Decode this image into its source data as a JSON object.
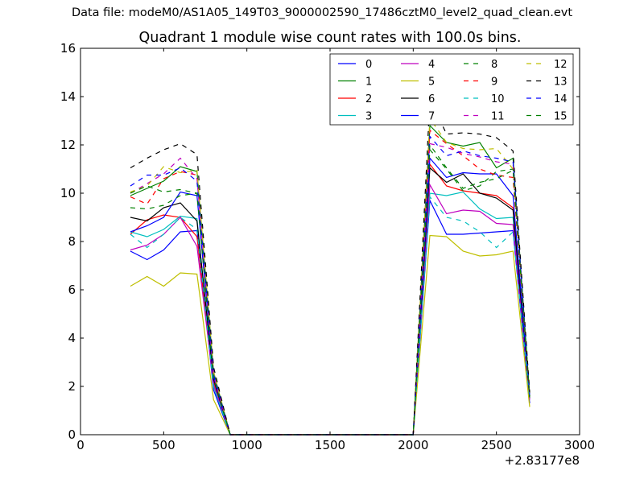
{
  "figure": {
    "suptitle": "Data file: modeM0/AS1A05_149T03_9000002590_17486cztM0_level2_quad_clean.evt"
  },
  "chart_data": {
    "type": "line",
    "title": "Quadrant 1 module wise count rates with 100.0s bins.",
    "xlabel": "",
    "ylabel": "",
    "x_offset_label": "+2.83177e8",
    "xlim": [
      0,
      3000
    ],
    "ylim": [
      0,
      16
    ],
    "xticks": [
      0,
      500,
      1000,
      1500,
      2000,
      2500,
      3000
    ],
    "yticks": [
      0,
      2,
      4,
      6,
      8,
      10,
      12,
      14,
      16
    ],
    "legend_position": "top-right",
    "legend_columns": 4,
    "x": [
      300,
      400,
      500,
      600,
      700,
      800,
      900,
      1000,
      1100,
      1200,
      1300,
      1400,
      1500,
      1600,
      1700,
      1800,
      1900,
      2000,
      2100,
      2200,
      2300,
      2400,
      2500,
      2600,
      2700
    ],
    "series": [
      {
        "name": "0",
        "color": "#0000ff",
        "dash": "solid",
        "values": [
          7.6,
          7.25,
          7.65,
          8.4,
          8.45,
          1.85,
          0,
          0,
          0,
          0,
          0,
          0,
          0,
          0,
          0,
          0,
          0,
          0,
          9.7,
          8.3,
          8.3,
          8.35,
          8.4,
          8.45,
          1.3
        ]
      },
      {
        "name": "1",
        "color": "#008000",
        "dash": "solid",
        "values": [
          9.9,
          10.2,
          10.5,
          11.1,
          10.9,
          2.6,
          0,
          0,
          0,
          0,
          0,
          0,
          0,
          0,
          0,
          0,
          0,
          0,
          12.8,
          12.1,
          11.95,
          12.1,
          11.05,
          11.45,
          1.6
        ]
      },
      {
        "name": "2",
        "color": "#ff0000",
        "dash": "solid",
        "values": [
          8.3,
          8.9,
          9.1,
          9.0,
          8.2,
          2.2,
          0,
          0,
          0,
          0,
          0,
          0,
          0,
          0,
          0,
          0,
          0,
          0,
          11.2,
          10.3,
          10.1,
          10.0,
          9.9,
          9.4,
          1.5
        ]
      },
      {
        "name": "3",
        "color": "#00bfbf",
        "dash": "solid",
        "values": [
          8.4,
          8.2,
          8.5,
          9.05,
          8.95,
          2.0,
          0,
          0,
          0,
          0,
          0,
          0,
          0,
          0,
          0,
          0,
          0,
          0,
          10.0,
          9.9,
          10.05,
          9.35,
          8.95,
          9.0,
          1.5
        ]
      },
      {
        "name": "4",
        "color": "#bf00bf",
        "dash": "solid",
        "values": [
          7.65,
          7.85,
          8.3,
          9.0,
          7.8,
          2.1,
          0,
          0,
          0,
          0,
          0,
          0,
          0,
          0,
          0,
          0,
          0,
          0,
          10.35,
          9.15,
          9.3,
          9.25,
          8.75,
          8.7,
          1.45
        ]
      },
      {
        "name": "5",
        "color": "#bfbf00",
        "dash": "solid",
        "values": [
          6.15,
          6.55,
          6.15,
          6.7,
          6.65,
          1.45,
          0,
          0,
          0,
          0,
          0,
          0,
          0,
          0,
          0,
          0,
          0,
          0,
          8.25,
          8.2,
          7.6,
          7.4,
          7.45,
          7.6,
          1.15
        ]
      },
      {
        "name": "6",
        "color": "#000000",
        "dash": "solid",
        "values": [
          9.0,
          8.85,
          9.4,
          9.6,
          8.85,
          2.3,
          0,
          0,
          0,
          0,
          0,
          0,
          0,
          0,
          0,
          0,
          0,
          0,
          11.05,
          10.45,
          10.8,
          10.0,
          9.8,
          9.3,
          1.55
        ]
      },
      {
        "name": "7",
        "color": "#0000ff",
        "dash": "solid",
        "values": [
          8.4,
          8.65,
          9.0,
          10.05,
          9.9,
          2.4,
          0,
          0,
          0,
          0,
          0,
          0,
          0,
          0,
          0,
          0,
          0,
          0,
          11.45,
          10.65,
          10.85,
          10.8,
          10.8,
          9.9,
          1.55
        ]
      },
      {
        "name": "8",
        "color": "#008000",
        "dash": "dashed",
        "values": [
          9.4,
          9.35,
          9.5,
          9.9,
          10.0,
          2.4,
          0,
          0,
          0,
          0,
          0,
          0,
          0,
          0,
          0,
          0,
          0,
          0,
          11.8,
          11.0,
          10.1,
          10.3,
          10.9,
          11.0,
          1.55
        ]
      },
      {
        "name": "9",
        "color": "#ff0000",
        "dash": "dashed",
        "values": [
          9.85,
          9.55,
          10.6,
          10.9,
          10.75,
          2.5,
          0,
          0,
          0,
          0,
          0,
          0,
          0,
          0,
          0,
          0,
          0,
          0,
          12.6,
          12.05,
          11.55,
          11.0,
          10.75,
          10.65,
          1.6
        ]
      },
      {
        "name": "10",
        "color": "#00bfbf",
        "dash": "dashed",
        "values": [
          8.3,
          7.75,
          8.3,
          9.0,
          8.5,
          2.0,
          0,
          0,
          0,
          0,
          0,
          0,
          0,
          0,
          0,
          0,
          0,
          0,
          9.85,
          9.0,
          8.85,
          8.4,
          7.75,
          8.4,
          1.5
        ]
      },
      {
        "name": "11",
        "color": "#bf00bf",
        "dash": "dashed",
        "values": [
          10.0,
          10.4,
          10.8,
          11.45,
          10.6,
          2.5,
          0,
          0,
          0,
          0,
          0,
          0,
          0,
          0,
          0,
          0,
          0,
          0,
          12.05,
          11.9,
          11.65,
          11.5,
          11.3,
          11.2,
          1.6
        ]
      },
      {
        "name": "12",
        "color": "#bfbf00",
        "dash": "dashed",
        "values": [
          10.05,
          10.3,
          11.1,
          10.85,
          10.95,
          2.6,
          0,
          0,
          0,
          0,
          0,
          0,
          0,
          0,
          0,
          0,
          0,
          0,
          13.1,
          12.1,
          11.85,
          11.8,
          11.85,
          11.0,
          1.65
        ]
      },
      {
        "name": "13",
        "color": "#000000",
        "dash": "dashed",
        "values": [
          11.05,
          11.45,
          11.8,
          12.05,
          11.6,
          2.8,
          0,
          0,
          0,
          0,
          0,
          0,
          0,
          0,
          0,
          0,
          0,
          0,
          13.9,
          12.45,
          12.5,
          12.45,
          12.3,
          11.75,
          1.75
        ]
      },
      {
        "name": "14",
        "color": "#0000ff",
        "dash": "dashed",
        "values": [
          10.3,
          10.75,
          10.75,
          11.05,
          10.5,
          2.5,
          0,
          0,
          0,
          0,
          0,
          0,
          0,
          0,
          0,
          0,
          0,
          0,
          12.35,
          11.55,
          11.75,
          11.55,
          11.45,
          11.3,
          1.6
        ]
      },
      {
        "name": "15",
        "color": "#008000",
        "dash": "dashed",
        "values": [
          10.0,
          10.3,
          10.05,
          10.15,
          10.0,
          2.35,
          0,
          0,
          0,
          0,
          0,
          0,
          0,
          0,
          0,
          0,
          0,
          0,
          12.0,
          11.05,
          10.2,
          10.45,
          10.6,
          10.95,
          1.55
        ]
      }
    ]
  }
}
